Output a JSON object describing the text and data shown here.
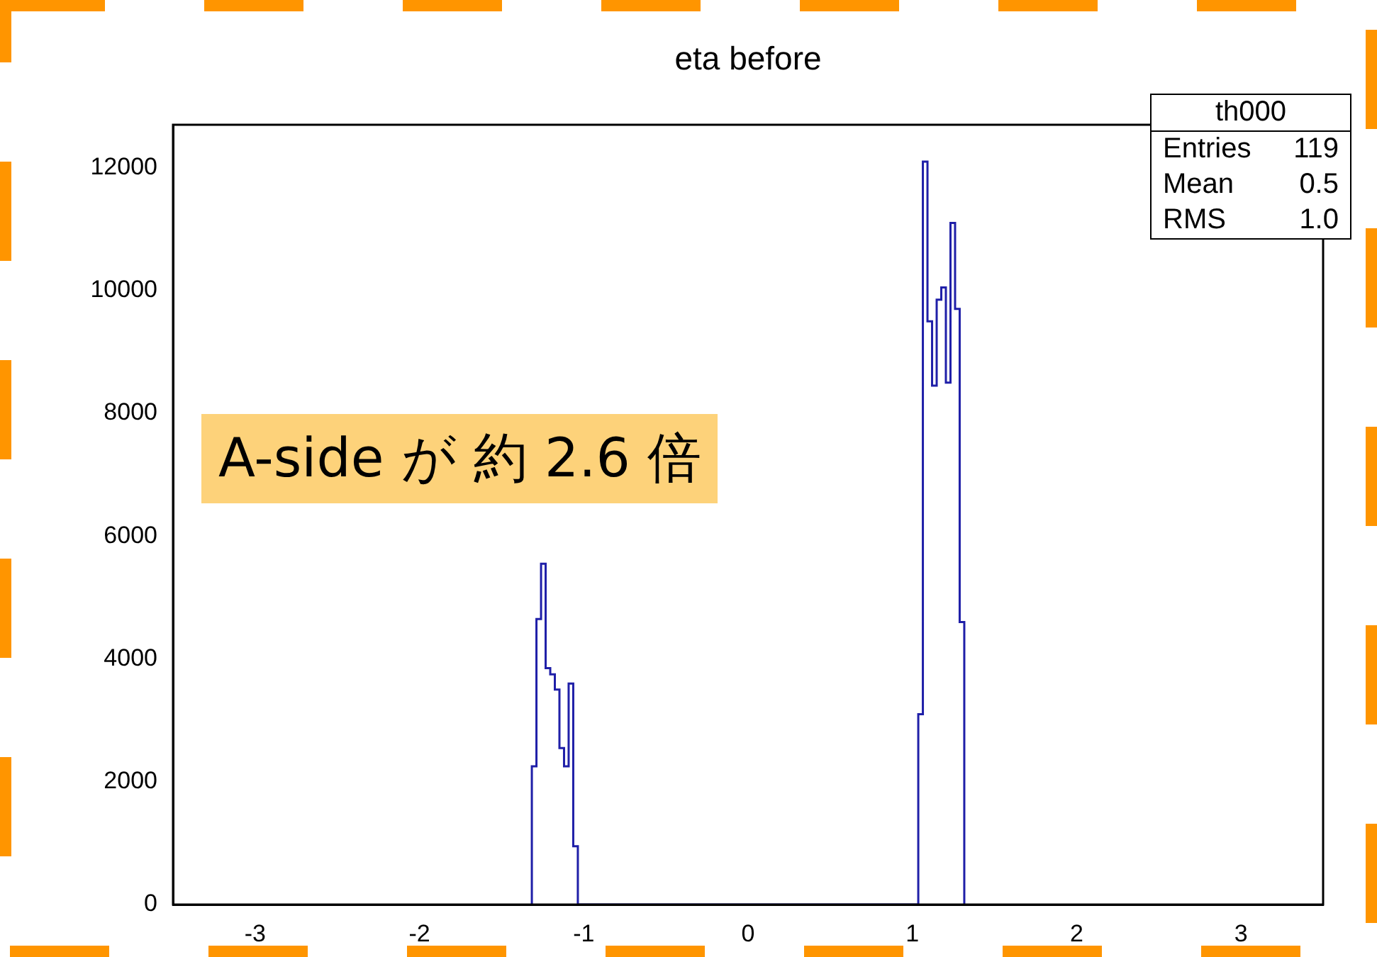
{
  "chart_data": {
    "type": "histogram",
    "title": "eta before",
    "bins": [
      -1.316,
      -1.288,
      -1.26,
      -1.232,
      -1.204,
      -1.176,
      -1.148,
      -1.12,
      -1.092,
      -1.064,
      -1.036,
      1.036,
      1.064,
      1.092,
      1.12,
      1.148,
      1.176,
      1.204,
      1.232,
      1.26,
      1.288,
      1.316
    ],
    "values": [
      2250,
      4650,
      5550,
      3850,
      3750,
      3500,
      2550,
      2250,
      3600,
      950,
      0,
      3100,
      12100,
      9500,
      8450,
      9850,
      10050,
      8500,
      11100,
      9700,
      4600
    ],
    "color": "#1f1fa8",
    "xlim": [
      -3.5,
      3.5
    ],
    "xticks": [
      -3,
      -2,
      -1,
      0,
      1,
      2,
      3
    ],
    "ylim": [
      0,
      12700
    ],
    "yticks": [
      0,
      2000,
      4000,
      6000,
      8000,
      10000,
      12000
    ],
    "grid": false,
    "legend": false,
    "annotations": [
      "th000",
      "Entries",
      "119",
      "Mean",
      "0.5",
      "RMS",
      "1.0",
      "A-side が 約 2.6 倍"
    ]
  }
}
